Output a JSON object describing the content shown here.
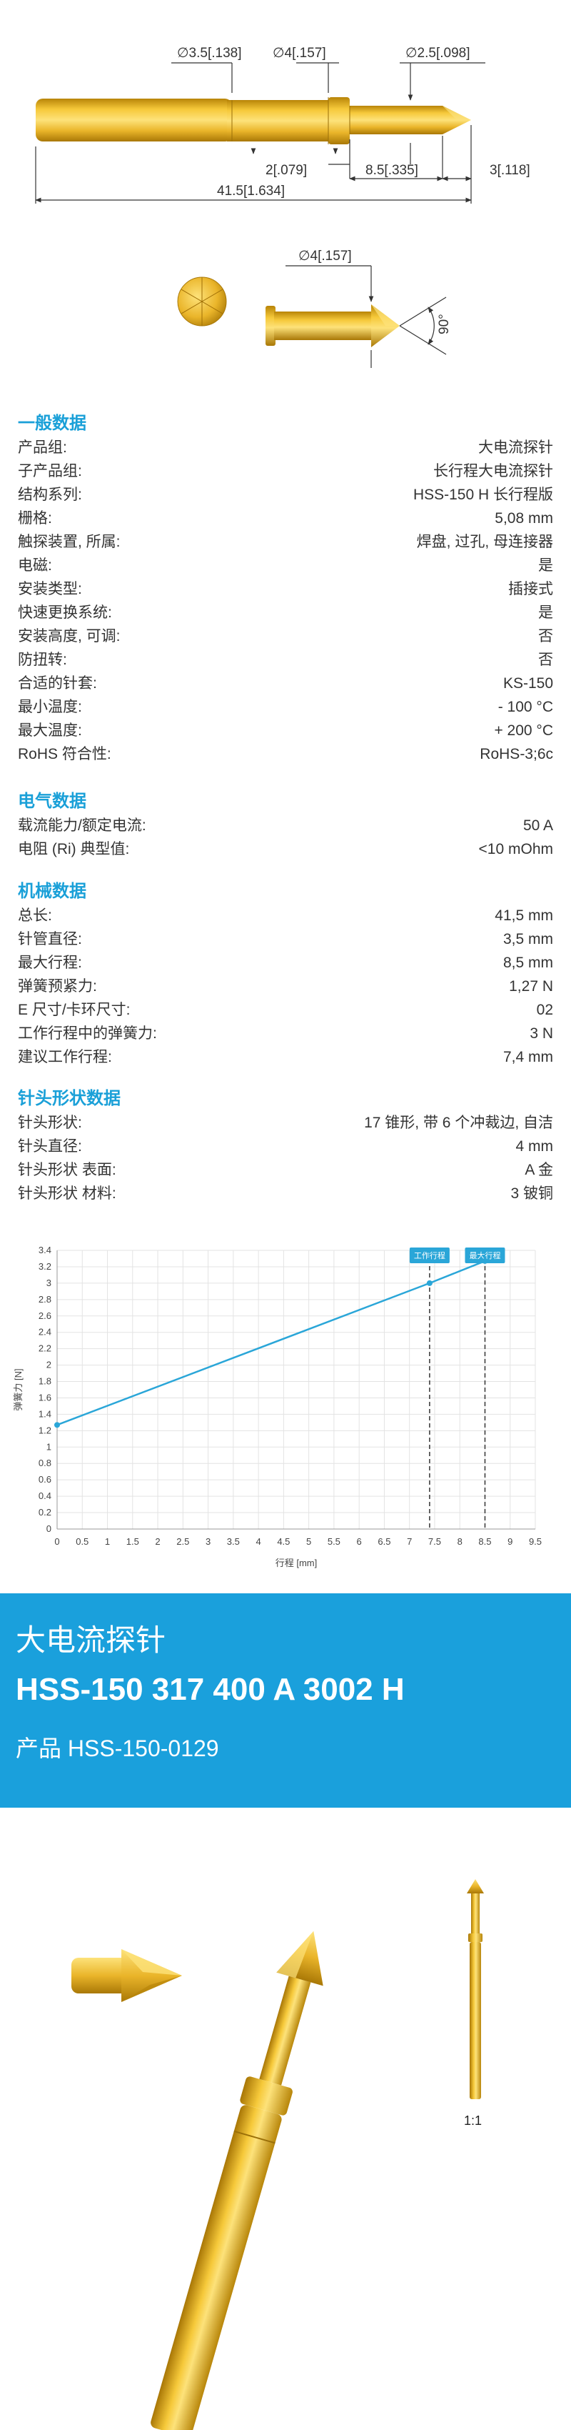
{
  "top_drawing": {
    "dims": {
      "d_tip_shaft": "∅3.5[.138]",
      "d_barrel": "∅4[.157]",
      "d_plunger": "∅2.5[.098]",
      "collar": "2[.079]",
      "travel": "8.5[.335]",
      "tip": "3[.118]",
      "total": "41.5[1.634]"
    }
  },
  "tip_drawing": {
    "d_head": "∅4[.157]",
    "angle": "90°"
  },
  "general": {
    "title": "一般数据",
    "rows": [
      {
        "k": "产品组:",
        "v": "大电流探针"
      },
      {
        "k": "子产品组:",
        "v": "长行程大电流探针"
      },
      {
        "k": "结构系列:",
        "v": "HSS-150 H 长行程版"
      },
      {
        "k": "栅格:",
        "v": "5,08 mm"
      },
      {
        "k": "触探装置, 所属:",
        "v": "焊盘, 过孔, 母连接器"
      },
      {
        "k": "电磁:",
        "v": "是"
      },
      {
        "k": "安装类型:",
        "v": "插接式"
      },
      {
        "k": "快速更换系统:",
        "v": "是"
      },
      {
        "k": "安装高度, 可调:",
        "v": "否"
      },
      {
        "k": "防扭转:",
        "v": "否"
      },
      {
        "k": "合适的针套:",
        "v": "KS-150"
      },
      {
        "k": "最小温度:",
        "v": "- 100 °C"
      },
      {
        "k": "最大温度:",
        "v": "+ 200 °C"
      },
      {
        "k": "RoHS 符合性:",
        "v": "RoHS-3;6c"
      }
    ]
  },
  "electrical": {
    "title": "电气数据",
    "rows": [
      {
        "k": "载流能力/额定电流:",
        "v": "50 A"
      },
      {
        "k": "电阻 (Ri) 典型值:",
        "v": "<10 mOhm"
      }
    ]
  },
  "mechanical": {
    "title": "机械数据",
    "rows": [
      {
        "k": "总长:",
        "v": "41,5 mm"
      },
      {
        "k": "针管直径:",
        "v": "3,5 mm"
      },
      {
        "k": "最大行程:",
        "v": "8,5 mm"
      },
      {
        "k": "弹簧预紧力:",
        "v": "1,27 N"
      },
      {
        "k": "E 尺寸/卡环尺寸:",
        "v": "02"
      },
      {
        "k": "工作行程中的弹簧力:",
        "v": "3 N"
      },
      {
        "k": "建议工作行程:",
        "v": "7,4 mm"
      }
    ]
  },
  "tip": {
    "title": "针头形状数据",
    "rows": [
      {
        "k": "针头形状:",
        "v": "17 锥形, 带 6 个冲裁边, 自洁"
      },
      {
        "k": "针头直径:",
        "v": "4 mm"
      },
      {
        "k": "针头形状 表面:",
        "v": "A 金"
      },
      {
        "k": "针头形状 材料:",
        "v": "3 铍铜"
      }
    ]
  },
  "chart_data": {
    "type": "line",
    "xlabel": "行程 [mm]",
    "ylabel": "弹簧力 [N]",
    "xlim": [
      0,
      9.5
    ],
    "ylim": [
      0,
      3.4
    ],
    "x_ticks": [
      "0",
      "0.5",
      "1",
      "1.5",
      "2",
      "2.5",
      "3",
      "3.5",
      "4",
      "4.5",
      "5",
      "5.5",
      "6",
      "6.5",
      "7",
      "7.5",
      "8",
      "8.5",
      "9",
      "9.5"
    ],
    "y_ticks": [
      "0",
      "0.2",
      "0.4",
      "0.6",
      "0.8",
      "1",
      "1.2",
      "1.4",
      "1.6",
      "1.8",
      "2",
      "2.2",
      "2.4",
      "2.6",
      "2.8",
      "3",
      "3.2",
      "3.4"
    ],
    "grid": true,
    "series": [
      {
        "x": [
          0,
          7.4,
          8.5
        ],
        "y": [
          1.27,
          3.0,
          3.27
        ],
        "color": "#2aa6d8"
      }
    ],
    "markers": [
      {
        "label": "工作行程",
        "x": 7.4
      },
      {
        "label": "最大行程",
        "x": 8.5
      }
    ]
  },
  "band": {
    "line1": "大电流探针",
    "line2": "HSS-150 317 400 A 3002 H",
    "line3": "产品 HSS-150-0129"
  },
  "scale": "1:1",
  "colors": {
    "accent": "#1aa0dc",
    "gold": "#e0a818",
    "gold_light": "#f8d050",
    "gold_dark": "#b07c08"
  }
}
